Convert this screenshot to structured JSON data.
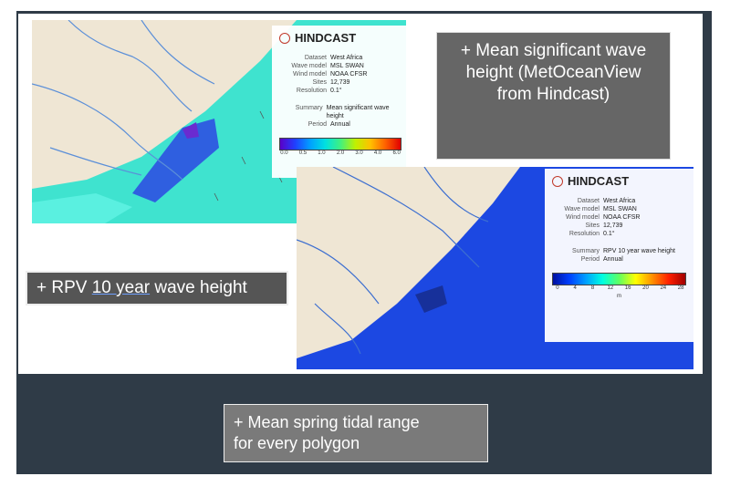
{
  "callouts": {
    "top_right": "+ Mean significant wave height (MetOceanView from Hindcast)",
    "rpv": {
      "parts": [
        "+ RPV ",
        "10 year",
        " wave height"
      ]
    },
    "bottom": {
      "lines": [
        "+ Mean spring tidal range",
        "for every polygon"
      ]
    }
  },
  "panels": [
    {
      "title": "HINDCAST",
      "rows": [
        [
          "Dataset",
          "West Africa"
        ],
        [
          "Wave model",
          "MSL SWAN"
        ],
        [
          "Wind model",
          "NOAA CFSR"
        ],
        [
          "Sites",
          "12,739"
        ],
        [
          "Resolution",
          "0.1°"
        ]
      ],
      "summary": [
        [
          "Summary",
          "Mean significant wave height"
        ],
        [
          "Period",
          "Annual"
        ]
      ],
      "legend": [
        "0.0",
        "0.5",
        "1.0",
        "2.0",
        "3.0",
        "4.0",
        "6.0"
      ]
    },
    {
      "title": "HINDCAST",
      "rows": [
        [
          "Dataset",
          "West Africa"
        ],
        [
          "Wave model",
          "MSL SWAN"
        ],
        [
          "Wind model",
          "NOAA CFSR"
        ],
        [
          "Sites",
          "12,739"
        ],
        [
          "Resolution",
          "0.1°"
        ]
      ],
      "summary": [
        [
          "Summary",
          "RPV 10 year wave height"
        ],
        [
          "Period",
          "Annual"
        ]
      ],
      "legend": [
        "0",
        "4",
        "8",
        "12",
        "16",
        "20",
        "24",
        "28"
      ],
      "unit": "m"
    }
  ]
}
